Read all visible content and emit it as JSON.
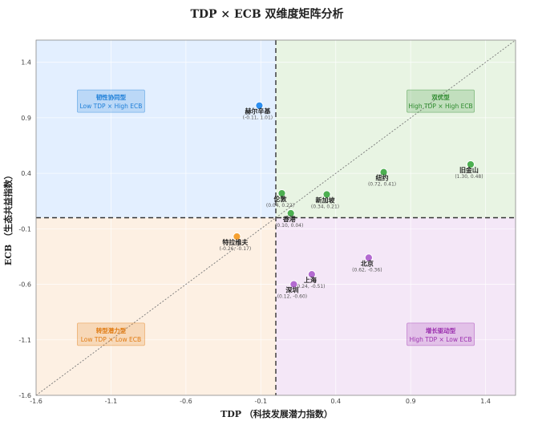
{
  "chart_data": {
    "type": "scatter",
    "title": "TDP × ECB 双维度矩阵分析",
    "xlabel": "TDP （科技发展潜力指数）",
    "ylabel": "ECB （生态共益指数）",
    "xlim": [
      -1.6,
      1.6
    ],
    "ylim": [
      -1.6,
      1.6
    ],
    "xticks": [
      "-1.6",
      "-1.1",
      "-0.6",
      "-0.1",
      "0.4",
      "0.9",
      "1.4"
    ],
    "yticks": [
      "-1.6",
      "-1.1",
      "-0.6",
      "-0.1",
      "0.4",
      "0.9",
      "1.4"
    ],
    "xtick_values": [
      -1.6,
      -1.1,
      -0.6,
      -0.1,
      0.4,
      0.9,
      1.4
    ],
    "ytick_values": [
      -1.6,
      -1.1,
      -0.6,
      -0.1,
      0.4,
      0.9,
      1.4
    ],
    "grid": true,
    "quadrant_divider": {
      "x": 0.0,
      "y": 0.0
    },
    "diagonal": true,
    "quadrants": [
      {
        "name": "韧性协同型",
        "desc": "Low TDP × High ECB",
        "color": "#1e7fd8",
        "bg": "#e3efff",
        "x": -1.1,
        "y": 1.05
      },
      {
        "name": "双优型",
        "desc": "High TDP × High ECB",
        "color": "#2e8b2e",
        "bg": "#e8f4e3",
        "x": 1.1,
        "y": 1.05
      },
      {
        "name": "转型潜力型",
        "desc": "Low TDP × Low ECB",
        "color": "#e07a10",
        "bg": "#fdf0e3",
        "x": -1.1,
        "y": -1.05
      },
      {
        "name": "增长驱动型",
        "desc": "High TDP × Low ECB",
        "color": "#9b2fae",
        "bg": "#f4e7f7",
        "x": 1.1,
        "y": -1.05
      }
    ],
    "points": [
      {
        "name": "赫尔辛基",
        "coord": "(-0.11, 1.01)",
        "x": -0.11,
        "y": 1.01,
        "color": "#2e8ff0"
      },
      {
        "name": "旧金山",
        "coord": "(1.30, 0.48)",
        "x": 1.3,
        "y": 0.48,
        "color": "#4caf50"
      },
      {
        "name": "纽约",
        "coord": "(0.72, 0.41)",
        "x": 0.72,
        "y": 0.41,
        "color": "#4caf50"
      },
      {
        "name": "伦敦",
        "coord": "(0.04, 0.22)",
        "x": 0.04,
        "y": 0.22,
        "color": "#4caf50"
      },
      {
        "name": "新加坡",
        "coord": "(0.34, 0.21)",
        "x": 0.34,
        "y": 0.21,
        "color": "#4caf50"
      },
      {
        "name": "香港",
        "coord": "(0.10, 0.04)",
        "x": 0.1,
        "y": 0.04,
        "color": "#4caf50"
      },
      {
        "name": "特拉维夫",
        "coord": "(-0.26, -0.17)",
        "x": -0.26,
        "y": -0.17,
        "color": "#f5a030"
      },
      {
        "name": "北京",
        "coord": "(0.62, -0.36)",
        "x": 0.62,
        "y": -0.36,
        "color": "#b36ad0"
      },
      {
        "name": "上海",
        "coord": "(0.24, -0.51)",
        "x": 0.24,
        "y": -0.51,
        "color": "#b36ad0"
      },
      {
        "name": "深圳",
        "coord": "(0.12, -0.60)",
        "x": 0.12,
        "y": -0.6,
        "color": "#b36ad0"
      }
    ]
  }
}
